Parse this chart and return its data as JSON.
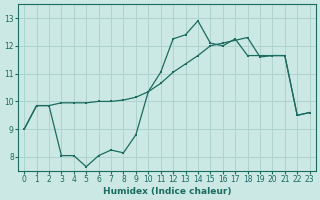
{
  "xlabel": "Humidex (Indice chaleur)",
  "bg_color": "#cce8e4",
  "line_color": "#1a6b60",
  "grid_color": "#afd4cf",
  "xlim": [
    -0.5,
    23.5
  ],
  "ylim": [
    7.5,
    13.5
  ],
  "xticks": [
    0,
    1,
    2,
    3,
    4,
    5,
    6,
    7,
    8,
    9,
    10,
    11,
    12,
    13,
    14,
    15,
    16,
    17,
    18,
    19,
    20,
    21,
    22,
    23
  ],
  "yticks": [
    8,
    9,
    10,
    11,
    12,
    13
  ],
  "line1_x": [
    0,
    1,
    2,
    3,
    4,
    5,
    6,
    7,
    8,
    9,
    10,
    11,
    12,
    13,
    14,
    15,
    16,
    17,
    18,
    19,
    20,
    21,
    22,
    23
  ],
  "line1_y": [
    9.0,
    9.85,
    9.85,
    9.95,
    9.95,
    9.95,
    10.0,
    10.0,
    10.05,
    10.15,
    10.35,
    10.65,
    11.05,
    11.35,
    11.65,
    12.0,
    12.1,
    12.2,
    12.3,
    11.6,
    11.65,
    11.65,
    9.5,
    9.6
  ],
  "line2_x": [
    0,
    1,
    2,
    3,
    4,
    5,
    6,
    7,
    8,
    9,
    10,
    11,
    12,
    13,
    14,
    15,
    16,
    17,
    18,
    19,
    20,
    21,
    22,
    23
  ],
  "line2_y": [
    9.0,
    9.85,
    9.85,
    8.05,
    8.05,
    7.65,
    8.05,
    8.25,
    8.15,
    8.8,
    10.35,
    11.05,
    12.25,
    12.4,
    12.9,
    12.1,
    12.0,
    12.25,
    11.65,
    11.65,
    11.65,
    11.65,
    9.5,
    9.6
  ]
}
